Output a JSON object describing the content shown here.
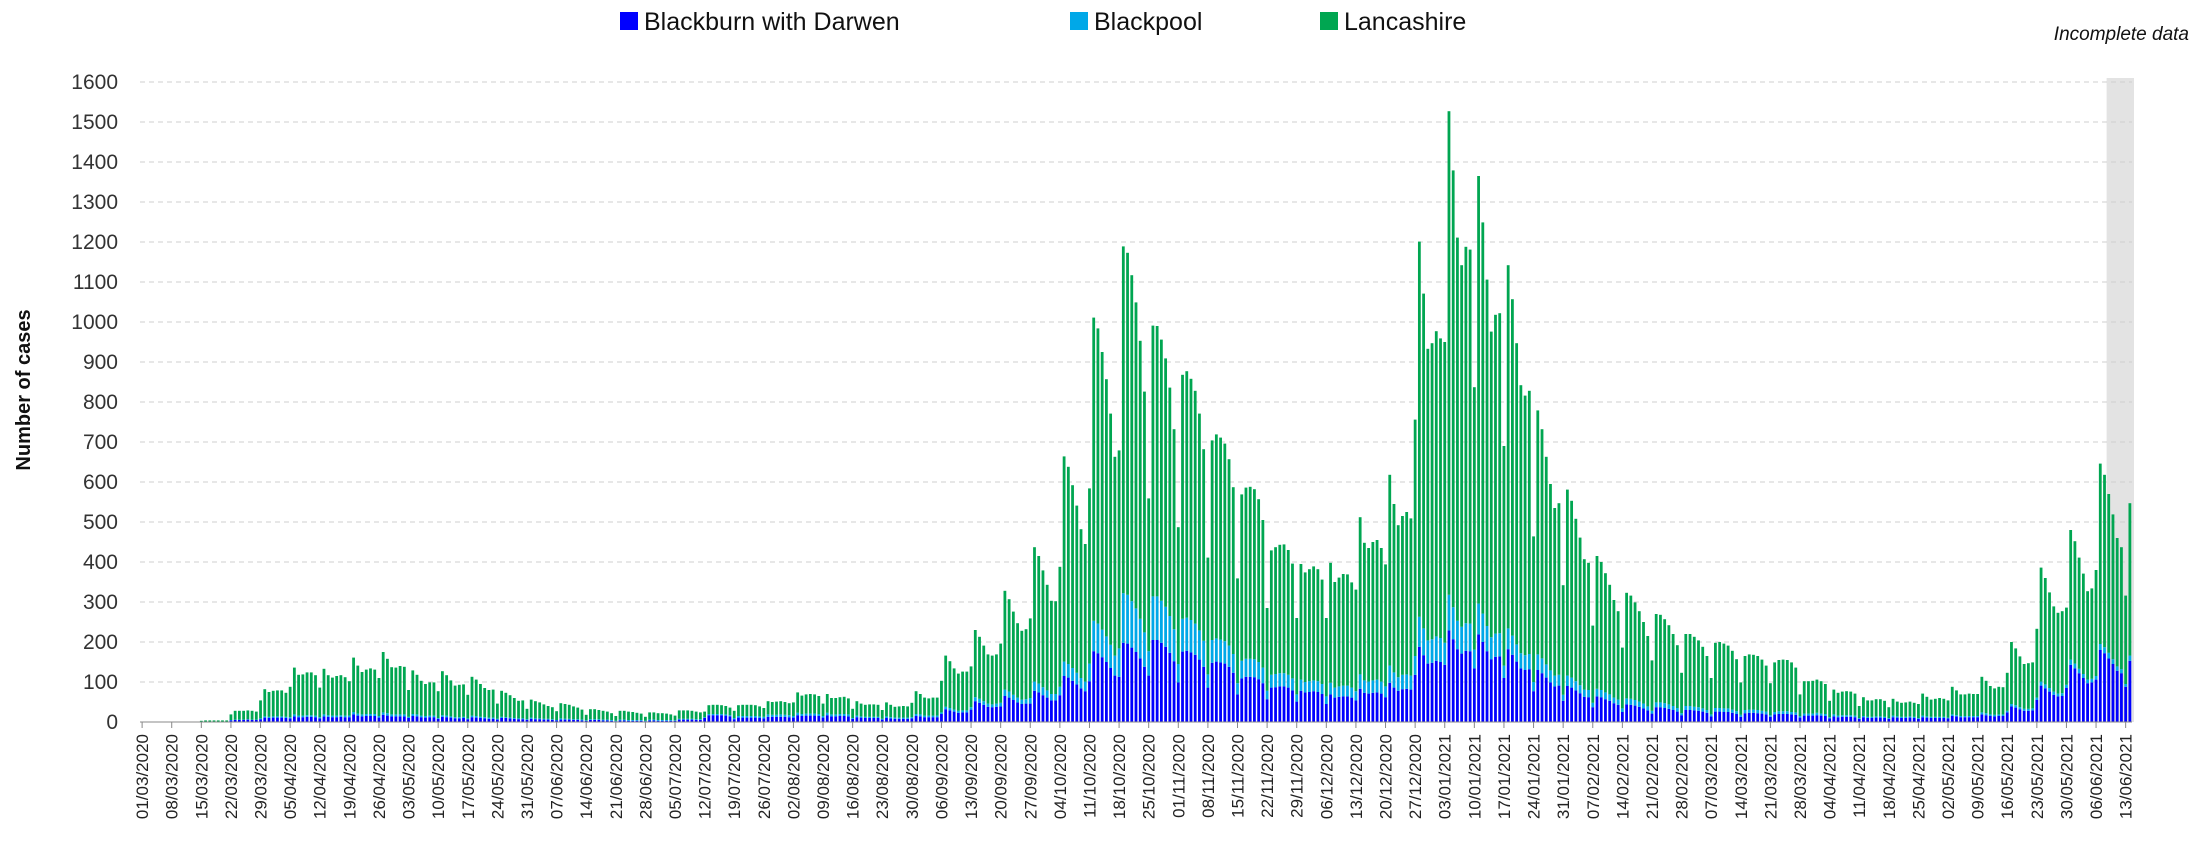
{
  "chart_data": {
    "type": "bar",
    "stacked": true,
    "ylabel": "Number of cases",
    "xlabel": "",
    "ylim": [
      0,
      1600
    ],
    "yticks": [
      0,
      100,
      200,
      300,
      400,
      500,
      600,
      700,
      800,
      900,
      1000,
      1100,
      1200,
      1300,
      1400,
      1500,
      1600
    ],
    "grid": "horizontal dashed",
    "legend_position": "top",
    "annotation": "Incomplete data",
    "incomplete_from": "09/06/2021",
    "start_date": "01/03/2020",
    "end_date": "14/06/2021",
    "tick_labels": [
      "01/03/2020",
      "08/03/2020",
      "15/03/2020",
      "22/03/2020",
      "29/03/2020",
      "05/04/2020",
      "12/04/2020",
      "19/04/2020",
      "26/04/2020",
      "03/05/2020",
      "10/05/2020",
      "17/05/2020",
      "24/05/2020",
      "31/05/2020",
      "07/06/2020",
      "14/06/2020",
      "21/06/2020",
      "28/06/2020",
      "05/07/2020",
      "12/07/2020",
      "19/07/2020",
      "26/07/2020",
      "02/08/2020",
      "09/08/2020",
      "16/08/2020",
      "23/08/2020",
      "30/08/2020",
      "06/09/2020",
      "13/09/2020",
      "20/09/2020",
      "27/09/2020",
      "04/10/2020",
      "11/10/2020",
      "18/10/2020",
      "25/10/2020",
      "01/11/2020",
      "08/11/2020",
      "15/11/2020",
      "22/11/2020",
      "29/11/2020",
      "06/12/2020",
      "13/12/2020",
      "20/12/2020",
      "27/12/2020",
      "03/01/2021",
      "10/01/2021",
      "17/01/2021",
      "24/01/2021",
      "31/01/2021",
      "07/02/2021",
      "14/02/2021",
      "21/02/2021",
      "28/02/2021",
      "07/03/2021",
      "14/03/2021",
      "21/03/2021",
      "28/03/2021",
      "04/04/2021",
      "11/04/2021",
      "18/04/2021",
      "25/04/2021",
      "02/05/2021",
      "09/05/2021",
      "16/05/2021",
      "23/05/2021",
      "30/05/2021",
      "06/06/2021",
      "13/06/2021"
    ],
    "series": [
      {
        "name": "Blackburn with Darwen",
        "color": "#0000ff",
        "weekly_avg": [
          0,
          0,
          1,
          5,
          10,
          12,
          12,
          15,
          14,
          12,
          10,
          9,
          8,
          6,
          5,
          4,
          3,
          3,
          5,
          15,
          10,
          12,
          15,
          14,
          10,
          8,
          12,
          25,
          40,
          50,
          60,
          90,
          140,
          160,
          170,
          150,
          130,
          100,
          80,
          70,
          60,
          70,
          80,
          150,
          180,
          170,
          140,
          100,
          70,
          50,
          35,
          30,
          25,
          22,
          20,
          18,
          15,
          12,
          10,
          10,
          10,
          12,
          15,
          30,
          70,
          110,
          140,
          120
        ]
      },
      {
        "name": "Blackpool",
        "color": "#00a8e8",
        "weekly_avg": [
          0,
          0,
          0,
          1,
          3,
          4,
          4,
          5,
          5,
          4,
          3,
          3,
          2,
          2,
          2,
          2,
          2,
          2,
          2,
          3,
          4,
          5,
          5,
          5,
          3,
          3,
          4,
          5,
          8,
          12,
          18,
          28,
          60,
          100,
          90,
          70,
          50,
          40,
          30,
          25,
          25,
          30,
          35,
          60,
          70,
          60,
          40,
          30,
          20,
          15,
          12,
          10,
          8,
          8,
          7,
          6,
          5,
          4,
          3,
          3,
          3,
          3,
          4,
          5,
          8,
          10,
          12,
          10
        ]
      },
      {
        "name": "Lancashire",
        "color": "#00a651",
        "weekly_avg": [
          0,
          0,
          3,
          20,
          60,
          100,
          95,
          110,
          120,
          85,
          85,
          75,
          50,
          35,
          30,
          20,
          18,
          15,
          18,
          20,
          25,
          30,
          45,
          40,
          30,
          28,
          45,
          100,
          130,
          190,
          260,
          400,
          600,
          700,
          560,
          520,
          440,
          380,
          290,
          260,
          260,
          330,
          390,
          750,
          950,
          830,
          700,
          470,
          360,
          260,
          210,
          180,
          150,
          140,
          120,
          115,
          75,
          55,
          40,
          35,
          45,
          55,
          70,
          120,
          220,
          250,
          350,
          300
        ]
      }
    ]
  }
}
